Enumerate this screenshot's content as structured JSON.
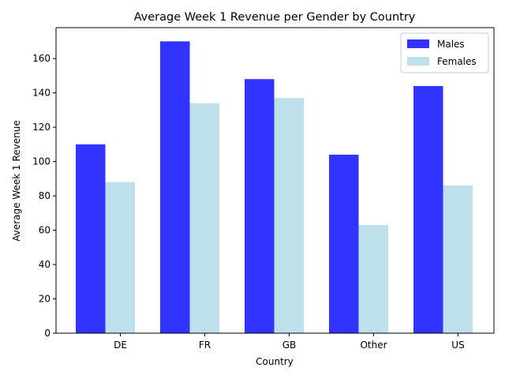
{
  "chart_data": {
    "type": "bar",
    "title": "Average Week 1 Revenue per Gender by Country",
    "xlabel": "Country",
    "ylabel": "Average Week 1 Revenue",
    "categories": [
      "DE",
      "FR",
      "GB",
      "Other",
      "US"
    ],
    "series": [
      {
        "name": "Males",
        "values": [
          110,
          170,
          148,
          104,
          144
        ],
        "color": "#0000ff",
        "opacity": 0.8
      },
      {
        "name": "Females",
        "values": [
          88,
          134,
          137,
          63,
          86
        ],
        "color": "#add8e6",
        "opacity": 0.8
      }
    ],
    "ylim": [
      0,
      178
    ],
    "yticks": [
      0,
      20,
      40,
      60,
      80,
      100,
      120,
      140,
      160
    ],
    "grid": false,
    "legend_position": "upper right"
  }
}
